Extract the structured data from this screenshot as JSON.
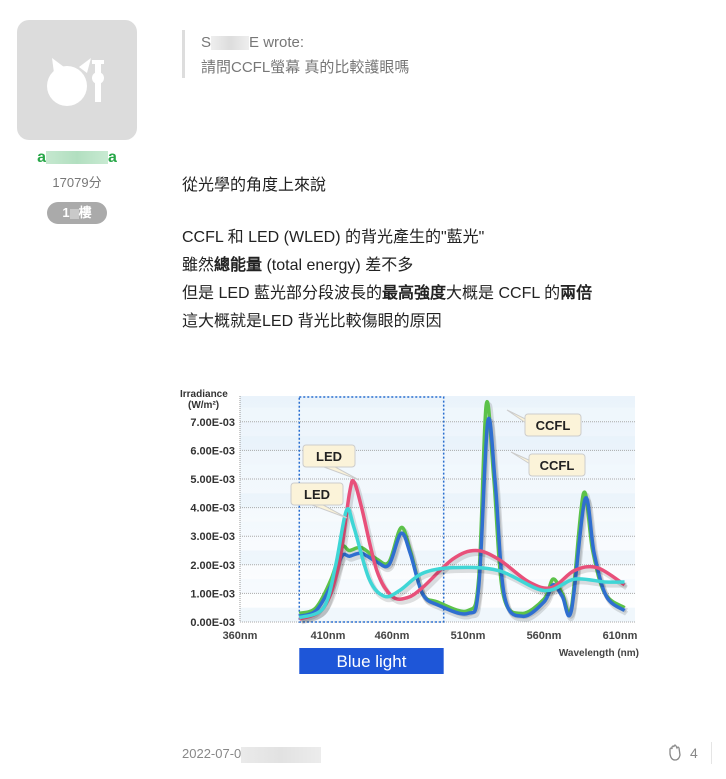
{
  "author": {
    "username_start": "a",
    "username_end": "a",
    "points": "17079分",
    "floor_start": "1",
    "floor_end": "樓",
    "avatar_icon": "cat-avatar-icon"
  },
  "quote": {
    "author_start": "S",
    "author_end": "E wrote:",
    "text": "請問CCFL螢幕 真的比較護眼嗎"
  },
  "post": {
    "line1": "從光學的角度上來說",
    "line2": "CCFL 和 LED (WLED) 的背光產生的\"藍光\"",
    "line3_a": "雖然",
    "line3_b": "總能量",
    "line3_c": " (total energy) 差不多",
    "line4_a": "但是 LED 藍光部分段波長的",
    "line4_b": "最高強度",
    "line4_c": "大概是 CCFL 的",
    "line4_d": "兩倍",
    "line5": "這大概就是LED 背光比較傷眼的原因"
  },
  "footer": {
    "date_start": "2022-07-0",
    "like_icon": "clap-hands-icon",
    "like_count": "4"
  },
  "chart_data": {
    "type": "line",
    "ylabel": "Irradiance (W/m²)",
    "ylabel_line1": "Irradiance",
    "ylabel_line2": "(W/m²)",
    "xlabel": "Wavelength (nm)",
    "xticks": [
      "360nm",
      "410nm",
      "460nm",
      "510nm",
      "560nm",
      "610nm"
    ],
    "xtick_values": [
      360,
      410,
      460,
      510,
      560,
      610
    ],
    "yticks": [
      "0.00E-03",
      "1.00E-03",
      "2.00E-03",
      "3.00E-03",
      "4.00E-03",
      "5.00E-03",
      "6.00E-03",
      "7.00E-03"
    ],
    "ytick_values": [
      0,
      0.001,
      0.002,
      0.003,
      0.004,
      0.005,
      0.006,
      0.007
    ],
    "xlim": [
      360,
      620
    ],
    "ylim": [
      0,
      0.0078
    ],
    "grid": true,
    "highlight": {
      "label": "Blue light",
      "range": [
        399,
        494
      ],
      "color": "#1e56d8"
    },
    "series": [
      {
        "name": "CCFL",
        "color": "#5cc24a",
        "x": [
          399,
          410,
          420,
          427,
          432,
          440,
          450,
          458,
          466,
          472,
          480,
          490,
          510,
          517,
          522,
          527,
          533,
          545,
          560,
          566,
          572,
          578,
          586,
          592,
          600,
          613
        ],
        "y": [
          0.0003,
          0.0005,
          0.0015,
          0.0026,
          0.0025,
          0.0026,
          0.0022,
          0.0021,
          0.0033,
          0.0025,
          0.001,
          0.0007,
          0.0004,
          0.0015,
          0.0076,
          0.005,
          0.001,
          0.0003,
          0.0008,
          0.0015,
          0.001,
          0.0005,
          0.0045,
          0.0025,
          0.001,
          0.0005
        ]
      },
      {
        "name": "CCFL",
        "color": "#2f6fd0",
        "x": [
          399,
          410,
          420,
          427,
          432,
          440,
          450,
          458,
          466,
          472,
          480,
          490,
          510,
          517,
          523,
          528,
          534,
          546,
          560,
          566,
          572,
          578,
          587,
          593,
          601,
          613
        ],
        "y": [
          0.0002,
          0.0004,
          0.0013,
          0.0023,
          0.0023,
          0.0024,
          0.0021,
          0.002,
          0.0031,
          0.0024,
          0.001,
          0.0006,
          0.0003,
          0.0012,
          0.007,
          0.0048,
          0.0009,
          0.0002,
          0.0007,
          0.0013,
          0.0009,
          0.0004,
          0.0043,
          0.0024,
          0.0009,
          0.0004
        ]
      },
      {
        "name": "LED",
        "color": "#e8507a",
        "x": [
          399,
          415,
          425,
          432,
          435,
          440,
          450,
          460,
          470,
          480,
          500,
          515,
          530,
          550,
          565,
          580,
          595,
          613
        ],
        "y": [
          0.0001,
          0.0005,
          0.002,
          0.0045,
          0.0049,
          0.004,
          0.0018,
          0.0009,
          0.00085,
          0.0012,
          0.0022,
          0.0025,
          0.0022,
          0.0014,
          0.0012,
          0.0018,
          0.0019,
          0.0013
        ]
      },
      {
        "name": "LED",
        "color": "#3fd6d6",
        "x": [
          399,
          415,
          423,
          430,
          435,
          445,
          455,
          465,
          480,
          500,
          530,
          560,
          580,
          600,
          613
        ],
        "y": [
          0.00015,
          0.0005,
          0.002,
          0.0039,
          0.0033,
          0.0015,
          0.0009,
          0.0011,
          0.0017,
          0.0019,
          0.0018,
          0.0011,
          0.0015,
          0.0014,
          0.0014
        ]
      }
    ]
  }
}
